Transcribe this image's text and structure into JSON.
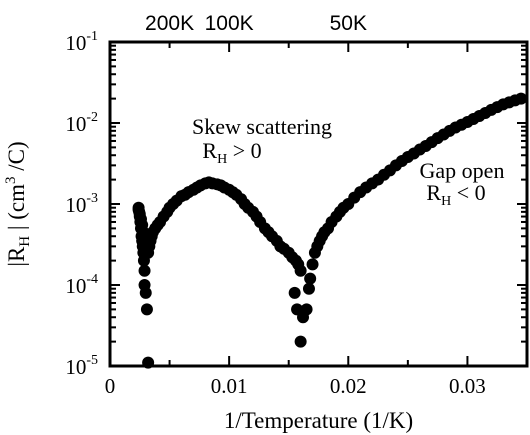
{
  "chart_data": {
    "type": "scatter",
    "title": "",
    "xlabel": "1/Temperature (1/K)",
    "ylabel_parts": [
      "|R",
      "H",
      " | (cm",
      "3",
      " /C)"
    ],
    "xlim": [
      0,
      0.035
    ],
    "ylim": [
      1e-05,
      0.1
    ],
    "yscale": "log",
    "grid": false,
    "legend": "none",
    "marker_color": "#000000",
    "x_ticks": [
      {
        "value": 0,
        "label": "0"
      },
      {
        "value": 0.01,
        "label": "0.01"
      },
      {
        "value": 0.02,
        "label": "0.02"
      },
      {
        "value": 0.03,
        "label": "0.03"
      }
    ],
    "y_ticks": [
      {
        "value": 1e-05,
        "base": "10",
        "exp": "-5"
      },
      {
        "value": 0.0001,
        "base": "10",
        "exp": "-4"
      },
      {
        "value": 0.001,
        "base": "10",
        "exp": "-3"
      },
      {
        "value": 0.01,
        "base": "10",
        "exp": "-2"
      },
      {
        "value": 0.1,
        "base": "10",
        "exp": "-1"
      }
    ],
    "top_axis_ticks": [
      {
        "value": 0.005,
        "label": "200K"
      },
      {
        "value": 0.01,
        "label": "100K"
      },
      {
        "value": 0.02,
        "label": "50K"
      }
    ],
    "annotations": [
      {
        "id": "skew",
        "x": 0.0123,
        "y": 0.0088,
        "line1": "Skew scattering",
        "line2_parts": [
          "R",
          "H",
          " > 0"
        ]
      },
      {
        "id": "gap",
        "x": 0.0295,
        "y": 0.0016,
        "line1": "Gap open",
        "line2_parts": [
          "R",
          "H",
          " < 0"
        ]
      }
    ],
    "points": [
      [
        0.0024,
        0.0009
      ],
      [
        0.00245,
        0.0008
      ],
      [
        0.0025,
        0.0007
      ],
      [
        0.00255,
        0.0006
      ],
      [
        0.0026,
        0.0005
      ],
      [
        0.00265,
        0.0004
      ],
      [
        0.0027,
        0.00035
      ],
      [
        0.00275,
        0.0003
      ],
      [
        0.0028,
        0.00025
      ],
      [
        0.00285,
        0.0002
      ],
      [
        0.0029,
        0.00015
      ],
      [
        0.0029,
        0.0001
      ],
      [
        0.003,
        8e-05
      ],
      [
        0.0031,
        5e-05
      ],
      [
        0.0032,
        1.1e-05
      ],
      [
        0.0024,
        0.00085
      ],
      [
        0.0025,
        0.00075
      ],
      [
        0.0026,
        0.00065
      ],
      [
        0.0027,
        0.00055
      ],
      [
        0.0028,
        0.00045
      ],
      [
        0.0029,
        0.00038
      ],
      [
        0.003,
        0.00032
      ],
      [
        0.0031,
        0.00028
      ],
      [
        0.0032,
        0.00025
      ],
      [
        0.0033,
        0.0003
      ],
      [
        0.0034,
        0.00035
      ],
      [
        0.0035,
        0.0004
      ],
      [
        0.0036,
        0.00045
      ],
      [
        0.0038,
        0.0005
      ],
      [
        0.004,
        0.00055
      ],
      [
        0.0042,
        0.0006
      ],
      [
        0.0045,
        0.0007
      ],
      [
        0.0048,
        0.0008
      ],
      [
        0.005,
        0.0009
      ],
      [
        0.0053,
        0.001
      ],
      [
        0.0056,
        0.0011
      ],
      [
        0.006,
        0.00125
      ],
      [
        0.0063,
        0.0013
      ],
      [
        0.0066,
        0.0014
      ],
      [
        0.007,
        0.0015
      ],
      [
        0.0073,
        0.0016
      ],
      [
        0.0076,
        0.0017
      ],
      [
        0.008,
        0.0018
      ],
      [
        0.0083,
        0.00185
      ],
      [
        0.0086,
        0.0018
      ],
      [
        0.009,
        0.00175
      ],
      [
        0.0093,
        0.0017
      ],
      [
        0.0096,
        0.0016
      ],
      [
        0.01,
        0.0015
      ],
      [
        0.0103,
        0.0014
      ],
      [
        0.0106,
        0.0013
      ],
      [
        0.011,
        0.00115
      ],
      [
        0.0113,
        0.001
      ],
      [
        0.0116,
        0.0009
      ],
      [
        0.012,
        0.0008
      ],
      [
        0.0123,
        0.0007
      ],
      [
        0.0126,
        0.0006
      ],
      [
        0.013,
        0.0005
      ],
      [
        0.0133,
        0.00045
      ],
      [
        0.0136,
        0.0004
      ],
      [
        0.014,
        0.00035
      ],
      [
        0.0143,
        0.0003
      ],
      [
        0.0146,
        0.00028
      ],
      [
        0.015,
        0.00025
      ],
      [
        0.0153,
        0.00022
      ],
      [
        0.0156,
        0.0002
      ],
      [
        0.0158,
        0.00018
      ],
      [
        0.016,
        0.00015
      ],
      [
        0.0155,
        8e-05
      ],
      [
        0.0157,
        5e-05
      ],
      [
        0.016,
        2e-05
      ],
      [
        0.0162,
        4e-05
      ],
      [
        0.0165,
        5e-05
      ],
      [
        0.0167,
        9e-05
      ],
      [
        0.0168,
        0.00012
      ],
      [
        0.017,
        0.00018
      ],
      [
        0.0172,
        0.00025
      ],
      [
        0.0174,
        0.0003
      ],
      [
        0.0176,
        0.00035
      ],
      [
        0.0178,
        0.0004
      ],
      [
        0.018,
        0.00045
      ],
      [
        0.0183,
        0.0005
      ],
      [
        0.0186,
        0.0006
      ],
      [
        0.019,
        0.0007
      ],
      [
        0.0193,
        0.0008
      ],
      [
        0.0196,
        0.0009
      ],
      [
        0.02,
        0.001
      ],
      [
        0.0205,
        0.0012
      ],
      [
        0.021,
        0.0014
      ],
      [
        0.0215,
        0.0016
      ],
      [
        0.022,
        0.0018
      ],
      [
        0.0225,
        0.002
      ],
      [
        0.023,
        0.0023
      ],
      [
        0.0235,
        0.0026
      ],
      [
        0.024,
        0.003
      ],
      [
        0.0245,
        0.0034
      ],
      [
        0.025,
        0.0038
      ],
      [
        0.0255,
        0.0042
      ],
      [
        0.026,
        0.0047
      ],
      [
        0.0265,
        0.0052
      ],
      [
        0.027,
        0.0058
      ],
      [
        0.0275,
        0.0065
      ],
      [
        0.028,
        0.0072
      ],
      [
        0.0285,
        0.008
      ],
      [
        0.029,
        0.0088
      ],
      [
        0.0295,
        0.0095
      ],
      [
        0.03,
        0.0103
      ],
      [
        0.0305,
        0.0112
      ],
      [
        0.031,
        0.0122
      ],
      [
        0.0315,
        0.0133
      ],
      [
        0.032,
        0.0145
      ],
      [
        0.0325,
        0.0157
      ],
      [
        0.033,
        0.017
      ],
      [
        0.0335,
        0.018
      ],
      [
        0.034,
        0.019
      ],
      [
        0.0345,
        0.02
      ]
    ]
  }
}
